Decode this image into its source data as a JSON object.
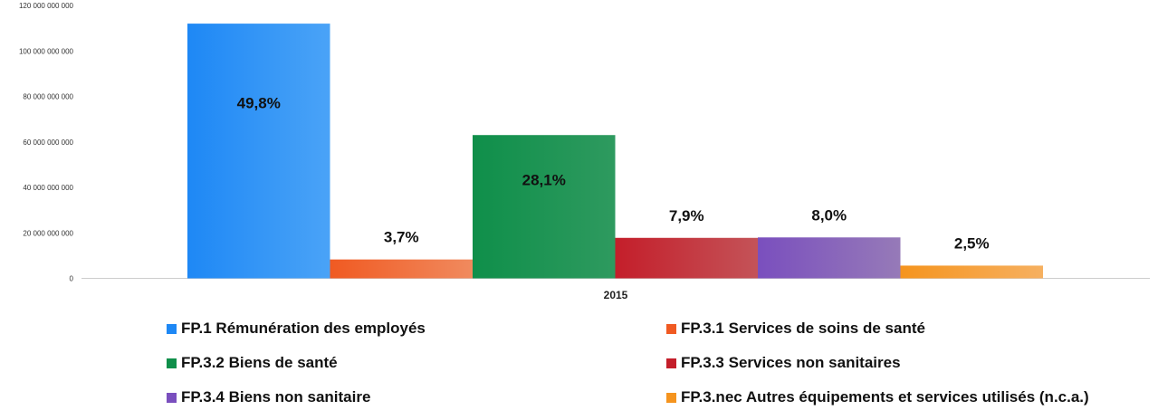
{
  "chart_data": {
    "type": "bar",
    "categories": [
      "2015"
    ],
    "series": [
      {
        "name": "FP.1 Rémunération des employés",
        "values": [
          112000000000
        ],
        "label": "49,8%",
        "color": "#1e88f5",
        "color_end": "#4aa3f7"
      },
      {
        "name": "FP.3.1 Services de soins de santé",
        "values": [
          8300000000
        ],
        "label": "3,7%",
        "color": "#f05a22",
        "color_end": "#f08a5e"
      },
      {
        "name": "FP.3.2 Biens de santé",
        "values": [
          63000000000
        ],
        "label": "28,1%",
        "color": "#0f8f4a",
        "color_end": "#2e9a5f"
      },
      {
        "name": "FP.3.3 Services non sanitaires",
        "values": [
          17800000000
        ],
        "label": "7,9%",
        "color": "#c41e2a",
        "color_end": "#c45358"
      },
      {
        "name": "FP.3.4 Biens non sanitaire",
        "values": [
          18000000000
        ],
        "label": "8,0%",
        "color": "#7a4fbe",
        "color_end": "#967ab8"
      },
      {
        "name": "FP.3.nec Autres équipements et services utilisés (n.c.a.)",
        "values": [
          5600000000
        ],
        "label": "2,5%",
        "color": "#f5941e",
        "color_end": "#f6b060"
      }
    ],
    "y_ticks": [
      "0",
      "20 000 000 000",
      "40 000 000 000",
      "60 000 000 000",
      "80 000 000 000",
      "100 000 000 000",
      "120 000 000 000"
    ],
    "ylim": [
      0,
      120000000000
    ],
    "legend_position": "bottom",
    "grid": false
  }
}
